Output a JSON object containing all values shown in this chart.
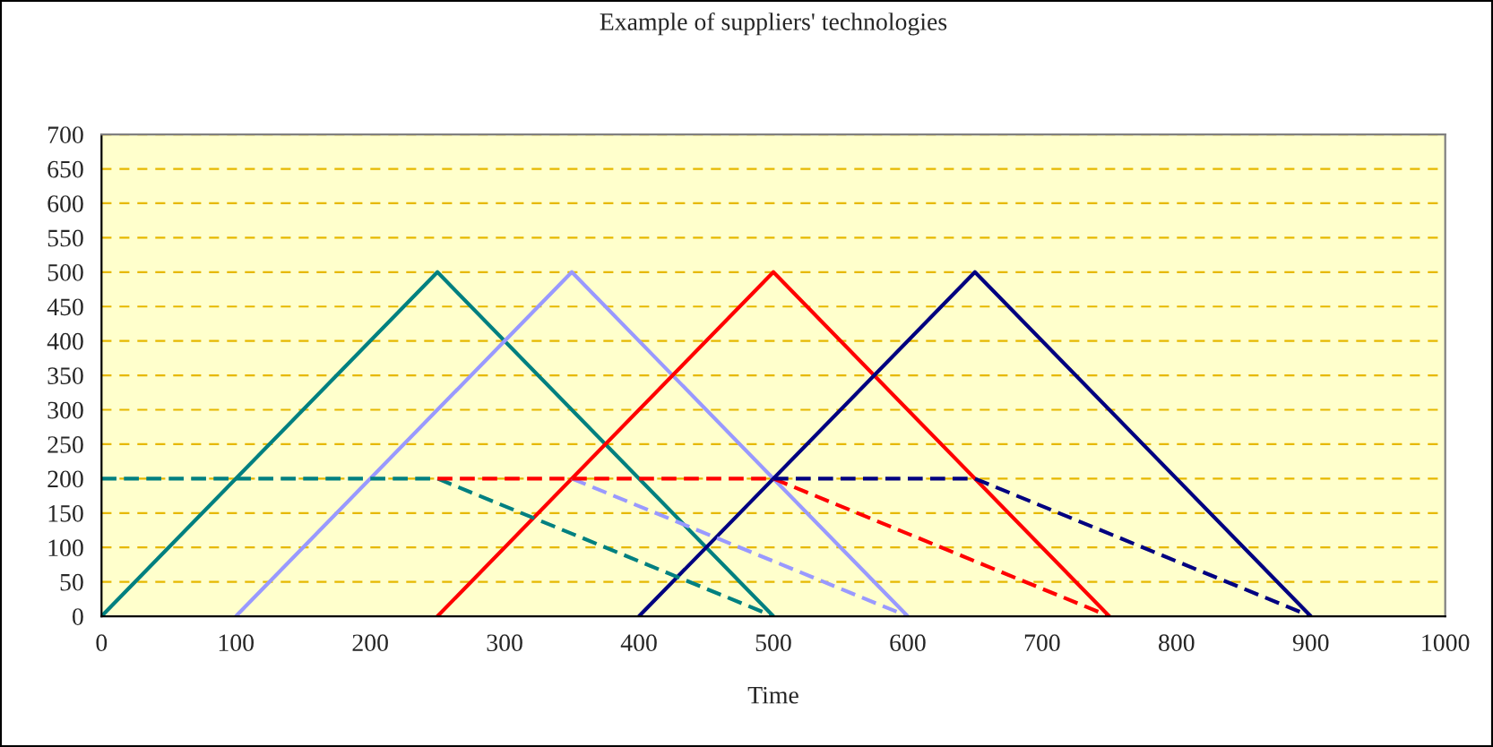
{
  "chart_data": {
    "type": "line",
    "title": "Example of suppliers' technologies",
    "xlabel": "Time",
    "xlim": [
      0,
      1000
    ],
    "xticks": [
      0,
      100,
      200,
      300,
      400,
      500,
      600,
      700,
      800,
      900,
      1000
    ],
    "ylim": [
      0,
      700
    ],
    "yticks": [
      0,
      50,
      100,
      150,
      200,
      250,
      300,
      350,
      400,
      450,
      500,
      550,
      600,
      650,
      700
    ],
    "grid": "y",
    "legend": false,
    "marker": "none",
    "line_style": "solid",
    "series": [
      {
        "color": "#008080",
        "x": [
          0,
          250,
          500
        ],
        "values": [
          0,
          500,
          0
        ]
      },
      {
        "color": "#9999ff",
        "x": [
          100,
          350,
          600
        ],
        "values": [
          0,
          500,
          0
        ]
      },
      {
        "color": "#ff0000",
        "x": [
          250,
          500,
          750
        ],
        "values": [
          0,
          500,
          0
        ]
      },
      {
        "color": "#000080",
        "x": [
          400,
          650,
          900
        ],
        "values": [
          0,
          500,
          0
        ]
      },
      {
        "color": "#008080",
        "x": [
          0,
          250,
          500
        ],
        "values": [
          200,
          200,
          0
        ],
        "line_style": "dashed"
      },
      {
        "color": "#9999ff",
        "x": [
          350,
          600
        ],
        "values": [
          200,
          0
        ],
        "line_style": "dashed"
      },
      {
        "color": "#ff0000",
        "x": [
          250,
          500,
          750
        ],
        "values": [
          200,
          200,
          0
        ],
        "line_style": "dashed"
      },
      {
        "color": "#000080",
        "x": [
          500,
          650,
          900
        ],
        "values": [
          200,
          200,
          0
        ],
        "line_style": "dashed"
      }
    ]
  }
}
